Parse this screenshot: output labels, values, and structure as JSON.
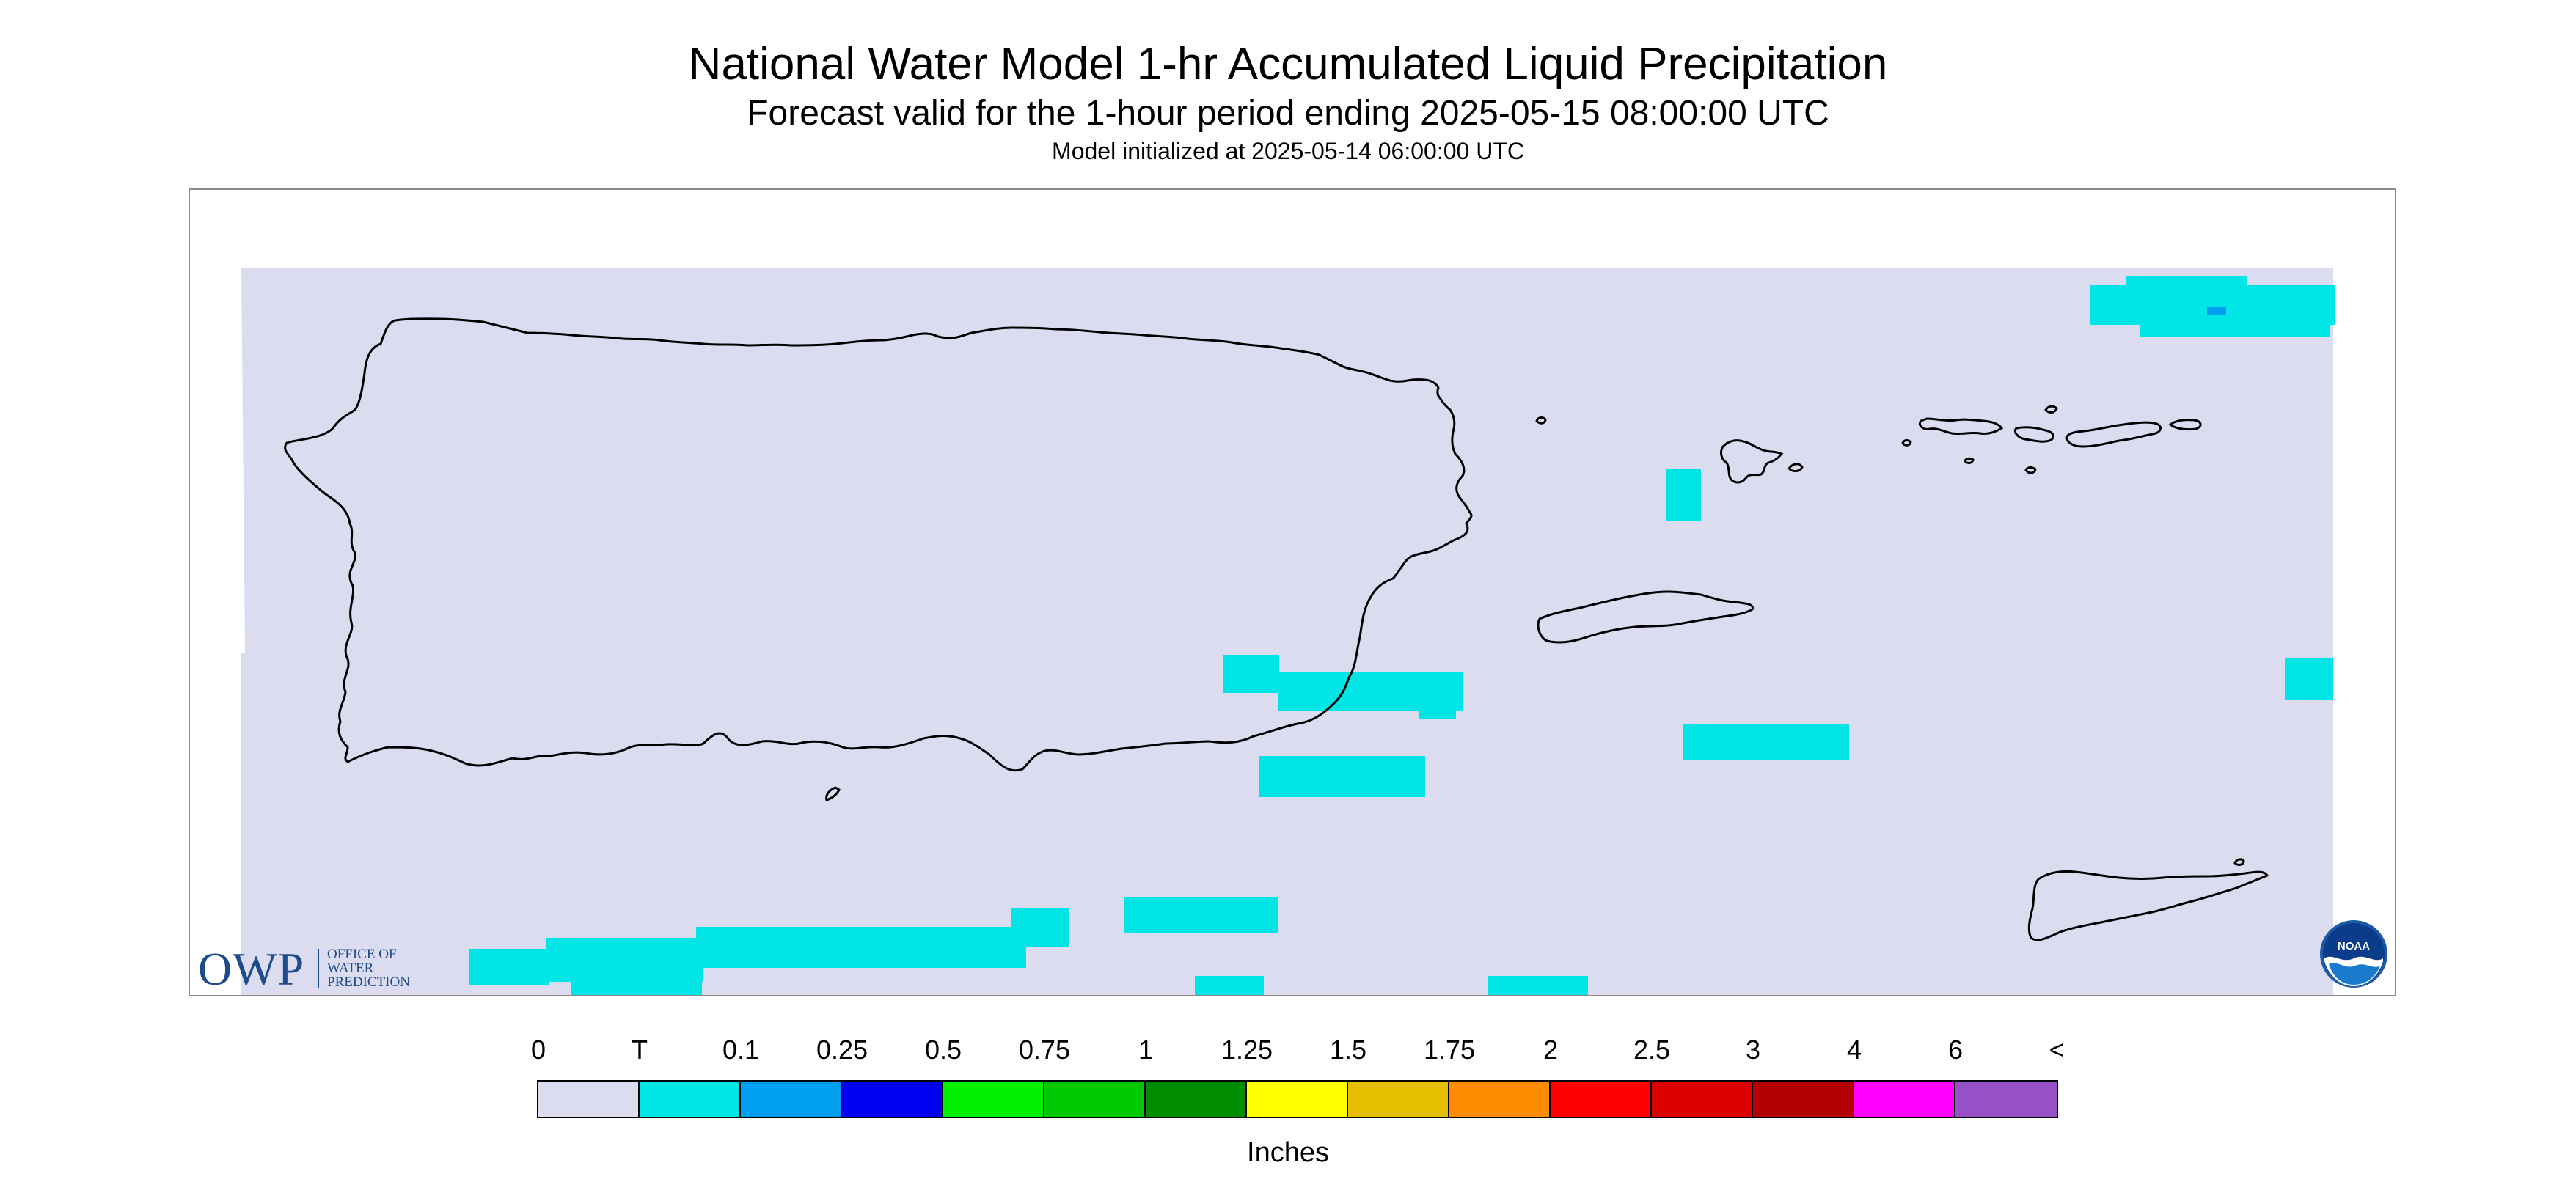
{
  "header": {
    "title": "National Water Model 1-hr Accumulated Liquid Precipitation",
    "subtitle": "Forecast valid for the 1-hour period ending 2025-05-15 08:00:00 UTC",
    "init": "Model initialized at 2025-05-14 06:00:00 UTC"
  },
  "logos": {
    "owp_mark": "OWP",
    "owp_text": "OFFICE OF\nWATER\nPREDICTION",
    "noaa_text": "NOAA"
  },
  "legend": {
    "labels": [
      "0",
      "T",
      "0.1",
      "0.25",
      "0.5",
      "0.75",
      "1",
      "1.25",
      "1.5",
      "1.75",
      "2",
      "2.5",
      "3",
      "4",
      "6",
      "<"
    ],
    "colors": [
      "#dcdcf0",
      "#00e6e6",
      "#009ef0",
      "#0000f0",
      "#00f000",
      "#00c800",
      "#008c00",
      "#ffff00",
      "#e6be00",
      "#ff8c00",
      "#ff0000",
      "#dc0000",
      "#b40000",
      "#ff00ff",
      "#9650c8"
    ],
    "units": "Inches"
  },
  "map": {
    "background_color": "#dcdcf0",
    "precip_color": "#00e6e6",
    "outline_color": "#000000",
    "frame_color": "#8c8c8c",
    "precip_areas_trace": 14,
    "precip_areas_0_1": 1
  }
}
